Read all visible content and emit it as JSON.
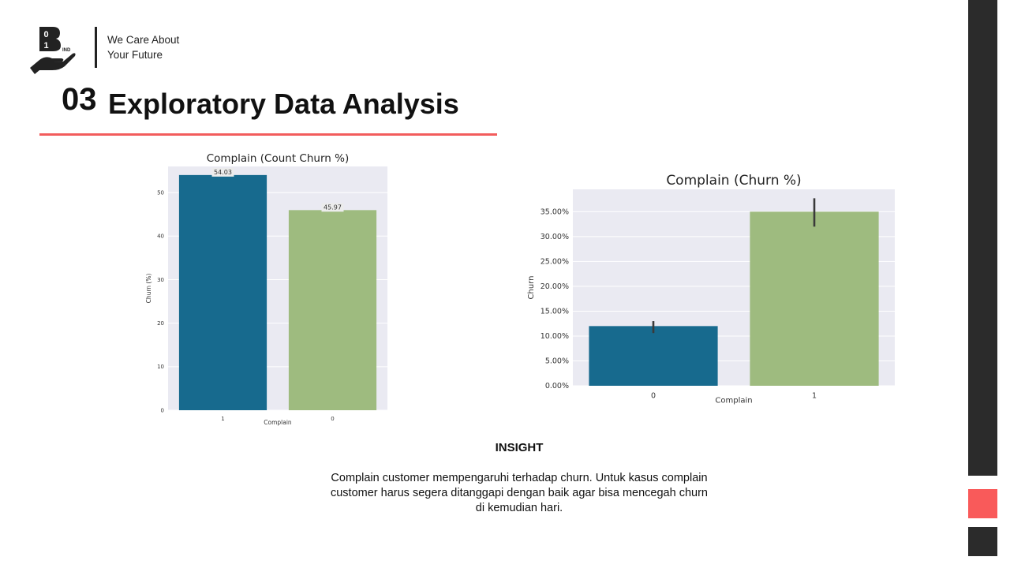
{
  "header": {
    "tagline_line1": "We Care About",
    "tagline_line2": "Your Future",
    "logo_text": {
      "digit_top": "0",
      "digit_bottom": "1",
      "letter": "B",
      "suffix": "IND"
    },
    "section_number": "03",
    "section_title": "Exploratory Data Analysis"
  },
  "chart_data": [
    {
      "type": "bar",
      "title": "Complain (Count Churn %)",
      "xlabel": "Complain",
      "ylabel": "Churn (%)",
      "categories": [
        "1",
        "0"
      ],
      "values": [
        54.03,
        45.97
      ],
      "data_labels": [
        "54.03",
        "45.97"
      ],
      "colors": [
        "#176a8e",
        "#9ebb7f"
      ],
      "ylim": [
        0,
        56
      ],
      "yticks": [
        0,
        10,
        20,
        30,
        40,
        50
      ],
      "ytick_labels": [
        "0",
        "10",
        "20",
        "30",
        "40",
        "50"
      ],
      "grid": true
    },
    {
      "type": "bar",
      "title": "Complain (Churn %)",
      "xlabel": "Complain",
      "ylabel": "Churn",
      "categories": [
        "0",
        "1"
      ],
      "values": [
        0.12,
        0.35
      ],
      "error_bars": [
        [
          0.106,
          0.13
        ],
        [
          0.32,
          0.377
        ]
      ],
      "colors": [
        "#176a8e",
        "#9ebb7f"
      ],
      "ylim": [
        0,
        0.395
      ],
      "yticks": [
        0,
        0.05,
        0.1,
        0.15,
        0.2,
        0.25,
        0.3,
        0.35
      ],
      "ytick_labels": [
        "0.00%",
        "5.00%",
        "10.00%",
        "15.00%",
        "20.00%",
        "25.00%",
        "30.00%",
        "35.00%"
      ],
      "grid": true
    }
  ],
  "insight": {
    "title": "INSIGHT",
    "body": "Complain customer mempengaruhi terhadap churn. Untuk kasus complain customer harus segera ditanggapi dengan baik agar bisa mencegah churn di kemudian hari."
  },
  "colors": {
    "accent_red": "#f25c5c",
    "sidebar_dark": "#2b2b2b",
    "sidebar_red": "#f95a5a",
    "plot_bg": "#eaeaf2"
  }
}
